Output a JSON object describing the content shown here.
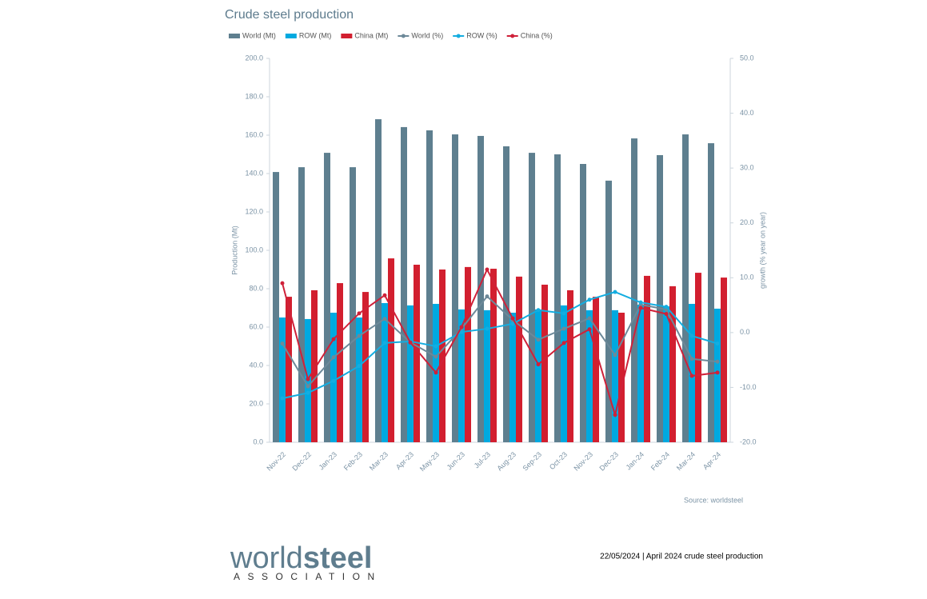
{
  "chart_data": {
    "type": "bar",
    "title": "Crude steel production",
    "ylabel": "Production (Mt)",
    "y2label": "growth (% year on year)",
    "categories": [
      "Nov-22",
      "Dec-22",
      "Jan-23",
      "Feb-23",
      "Mar-23",
      "Apr-23",
      "May-23",
      "Jun-23",
      "Jul-23",
      "Aug-23",
      "Sep-23",
      "Oct-23",
      "Nov-23",
      "Dec-23",
      "Jan-24",
      "Feb-24",
      "Mar-24",
      "Apr-24"
    ],
    "series": [
      {
        "name": "World (Mt)",
        "type": "bar",
        "color": "#5e7f8f",
        "values": [
          140.8,
          143.3,
          150.8,
          143.3,
          168.3,
          164.2,
          162.5,
          160.4,
          159.6,
          154.2,
          150.8,
          150.0,
          145.0,
          136.3,
          158.3,
          149.6,
          160.4,
          155.8
        ]
      },
      {
        "name": "ROW (Mt)",
        "type": "bar",
        "color": "#00a9e0",
        "values": [
          65.0,
          64.2,
          67.5,
          65.0,
          72.5,
          71.3,
          72.1,
          69.2,
          68.8,
          67.5,
          69.2,
          71.3,
          68.8,
          68.8,
          71.7,
          70.8,
          72.1,
          69.6
        ]
      },
      {
        "name": "China (Mt)",
        "type": "bar",
        "color": "#d21f2f",
        "values": [
          75.8,
          79.2,
          82.9,
          78.3,
          95.8,
          92.5,
          90.0,
          91.3,
          90.4,
          86.3,
          82.1,
          79.2,
          75.8,
          67.5,
          86.7,
          81.3,
          88.3,
          85.8
        ]
      },
      {
        "name": "World (%)",
        "type": "line",
        "axis": "y2",
        "color": "#6d8999",
        "values": [
          -2.0,
          -9.8,
          -4.5,
          -0.6,
          2.5,
          -1.8,
          -4.4,
          0.7,
          6.6,
          2.3,
          -1.3,
          0.7,
          2.6,
          -4.1,
          5.1,
          4.2,
          -4.8,
          -5.3
        ]
      },
      {
        "name": "ROW (%)",
        "type": "line",
        "axis": "y2",
        "color": "#14ade0",
        "values": [
          -12.0,
          -11.0,
          -8.8,
          -6.1,
          -1.9,
          -1.6,
          -2.5,
          0.1,
          0.7,
          1.6,
          4.1,
          3.5,
          6.0,
          7.4,
          5.5,
          4.7,
          -0.6,
          -2.0
        ]
      },
      {
        "name": "China (%)",
        "type": "line",
        "axis": "y2",
        "color": "#cf2139",
        "values": [
          9.0,
          -8.5,
          -1.2,
          3.5,
          6.8,
          -1.8,
          -7.3,
          1.0,
          11.5,
          2.6,
          -5.8,
          -1.9,
          0.6,
          -15.0,
          4.5,
          3.4,
          -7.9,
          -7.3
        ]
      }
    ],
    "ylim": [
      0,
      200
    ],
    "yticks": [
      {
        "value": 0,
        "label": "0.0"
      },
      {
        "value": 20,
        "label": "20.0"
      },
      {
        "value": 40,
        "label": "40.0"
      },
      {
        "value": 60,
        "label": "60.0"
      },
      {
        "value": 80,
        "label": "80.0"
      },
      {
        "value": 100,
        "label": "100.0"
      },
      {
        "value": 120,
        "label": "120.0"
      },
      {
        "value": 140,
        "label": "140.0"
      },
      {
        "value": 160,
        "label": "160.0"
      },
      {
        "value": 180,
        "label": "180.0"
      },
      {
        "value": 200,
        "label": "200.0"
      }
    ],
    "y2lim": [
      -20,
      50
    ],
    "y2ticks": [
      {
        "value": -20,
        "label": "-20.0"
      },
      {
        "value": -10,
        "label": "-10.0"
      },
      {
        "value": 0,
        "label": "0.0"
      },
      {
        "value": 10,
        "label": "10.0"
      },
      {
        "value": 20,
        "label": "20.0"
      },
      {
        "value": 30,
        "label": "30.0"
      },
      {
        "value": 40,
        "label": "40.0"
      },
      {
        "value": 50,
        "label": "50.0"
      }
    ],
    "grid": false,
    "legend": "top",
    "source": "Source: worldsteel"
  },
  "footer": {
    "logo_main": "world",
    "logo_bold": "steel",
    "logo_sub": "ASSOCIATION",
    "text": "22/05/2024 | April 2024 crude steel production"
  }
}
